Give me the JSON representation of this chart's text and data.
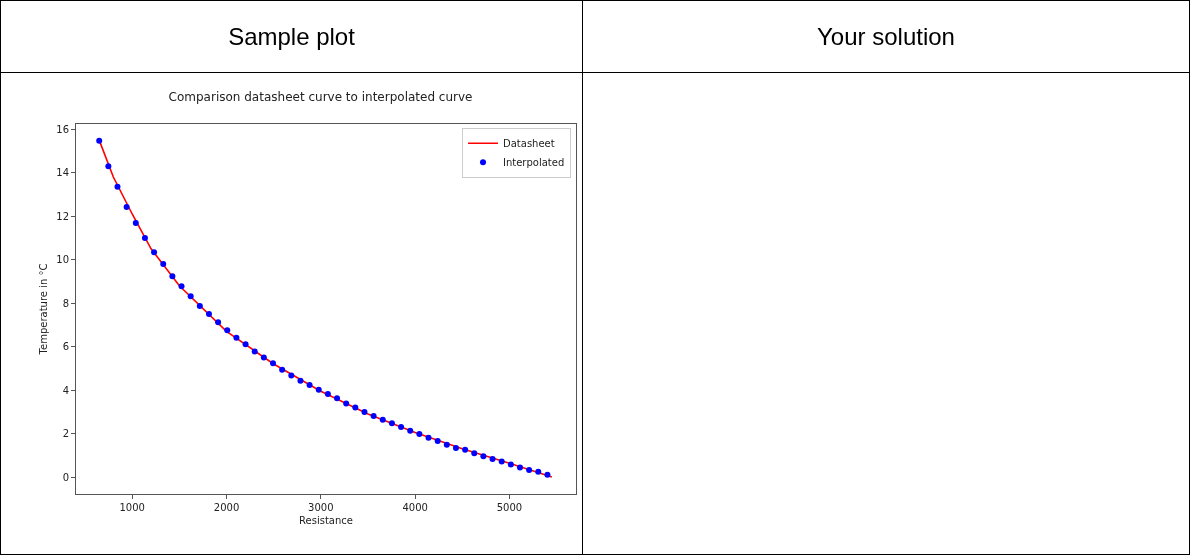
{
  "chart_data": {
    "type": "line",
    "title": "Comparison datasheet curve to interpolated curve",
    "xlabel": "Resistance",
    "ylabel": "Temperature in °C",
    "annotations": [
      "Sample plot",
      "Your solution"
    ],
    "xlim": [
      404,
      5706
    ],
    "xticks": [
      1000,
      2000,
      3000,
      4000,
      5000
    ],
    "ylim": [
      -0.78,
      16.24
    ],
    "yticks": [
      0,
      2,
      4,
      6,
      8,
      10,
      12,
      14,
      16
    ],
    "grid": false,
    "legend": "top right",
    "series": [
      {
        "name": "Datasheet",
        "color": "#ff0000",
        "line_style": "solid",
        "marker": "none",
        "x": [
          650,
          800,
          1000,
          1200,
          1500,
          2000,
          2500,
          3000,
          3500,
          4000,
          4500,
          5000,
          5450
        ],
        "values": [
          15.5,
          13.8,
          12.1,
          10.5,
          8.8,
          6.7,
          5.2,
          3.95,
          2.9,
          2.05,
          1.3,
          0.63,
          0
        ]
      },
      {
        "name": "Interpolated",
        "type": "scatter",
        "color": "#0000ff",
        "marker": "circle",
        "x": [
          650,
          747,
          844,
          941,
          1038,
          1135,
          1232,
          1329,
          1426,
          1523,
          1620,
          1717,
          1814,
          1911,
          2008,
          2105,
          2202,
          2299,
          2396,
          2493,
          2590,
          2687,
          2784,
          2881,
          2978,
          3075,
          3172,
          3269,
          3366,
          3463,
          3560,
          3657,
          3754,
          3851,
          3948,
          4045,
          4142,
          4239,
          4336,
          4433,
          4530,
          4627,
          4724,
          4821,
          4918,
          5015,
          5112,
          5209,
          5306,
          5403
        ],
        "values": [
          15.47,
          14.3,
          13.35,
          12.42,
          11.69,
          11.0,
          10.34,
          9.8,
          9.24,
          8.78,
          8.32,
          7.87,
          7.5,
          7.12,
          6.75,
          6.41,
          6.11,
          5.77,
          5.5,
          5.23,
          4.94,
          4.67,
          4.43,
          4.23,
          4.01,
          3.82,
          3.62,
          3.38,
          3.2,
          2.99,
          2.81,
          2.64,
          2.47,
          2.3,
          2.13,
          1.98,
          1.81,
          1.66,
          1.49,
          1.34,
          1.25,
          1.1,
          0.96,
          0.83,
          0.71,
          0.58,
          0.44,
          0.32,
          0.24,
          0.1
        ]
      }
    ]
  }
}
